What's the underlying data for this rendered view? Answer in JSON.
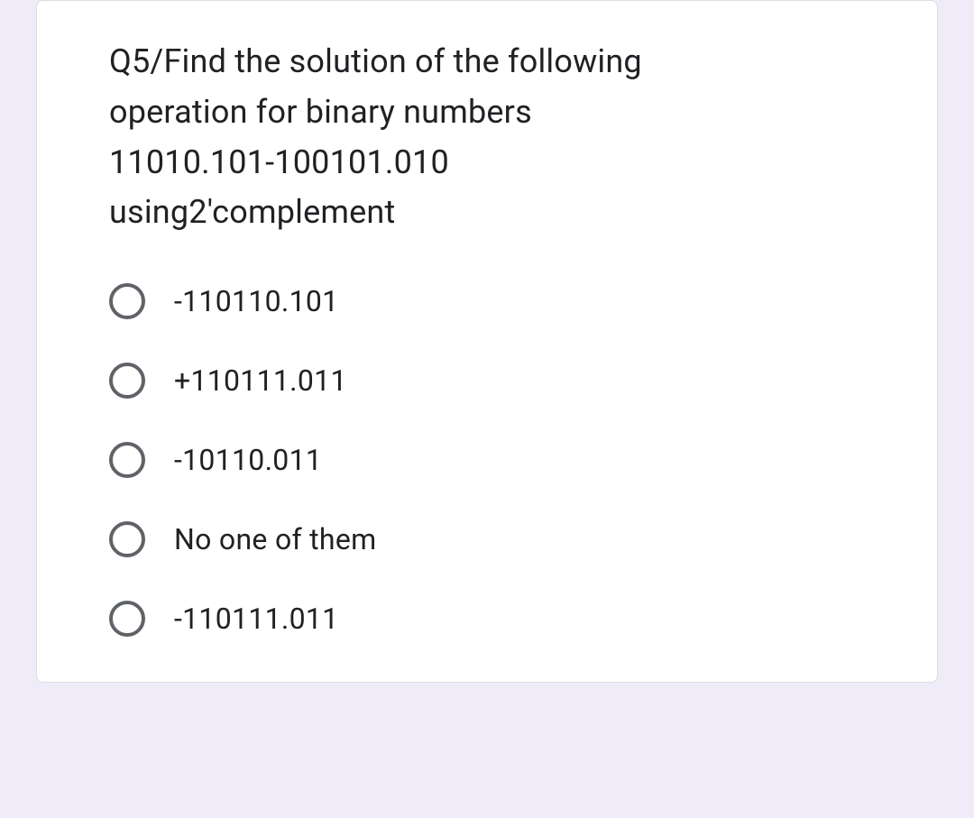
{
  "form": {
    "background_color": "#f0ebf8",
    "card_background": "#ffffff",
    "card_border": "#dadce0",
    "text_color": "#202124",
    "radio_border_color": "#5f6368"
  },
  "question": {
    "line1": "Q5/Find the solution of the following",
    "line2": "operation for binary numbers",
    "line3": "11010.101-100101.010",
    "line4": " using2'complement"
  },
  "options": [
    {
      "label": "-110110.101"
    },
    {
      "label": "+110111.011"
    },
    {
      "label": "-10110.011"
    },
    {
      "label": "No one of them"
    },
    {
      "label": "-110111.011"
    }
  ]
}
